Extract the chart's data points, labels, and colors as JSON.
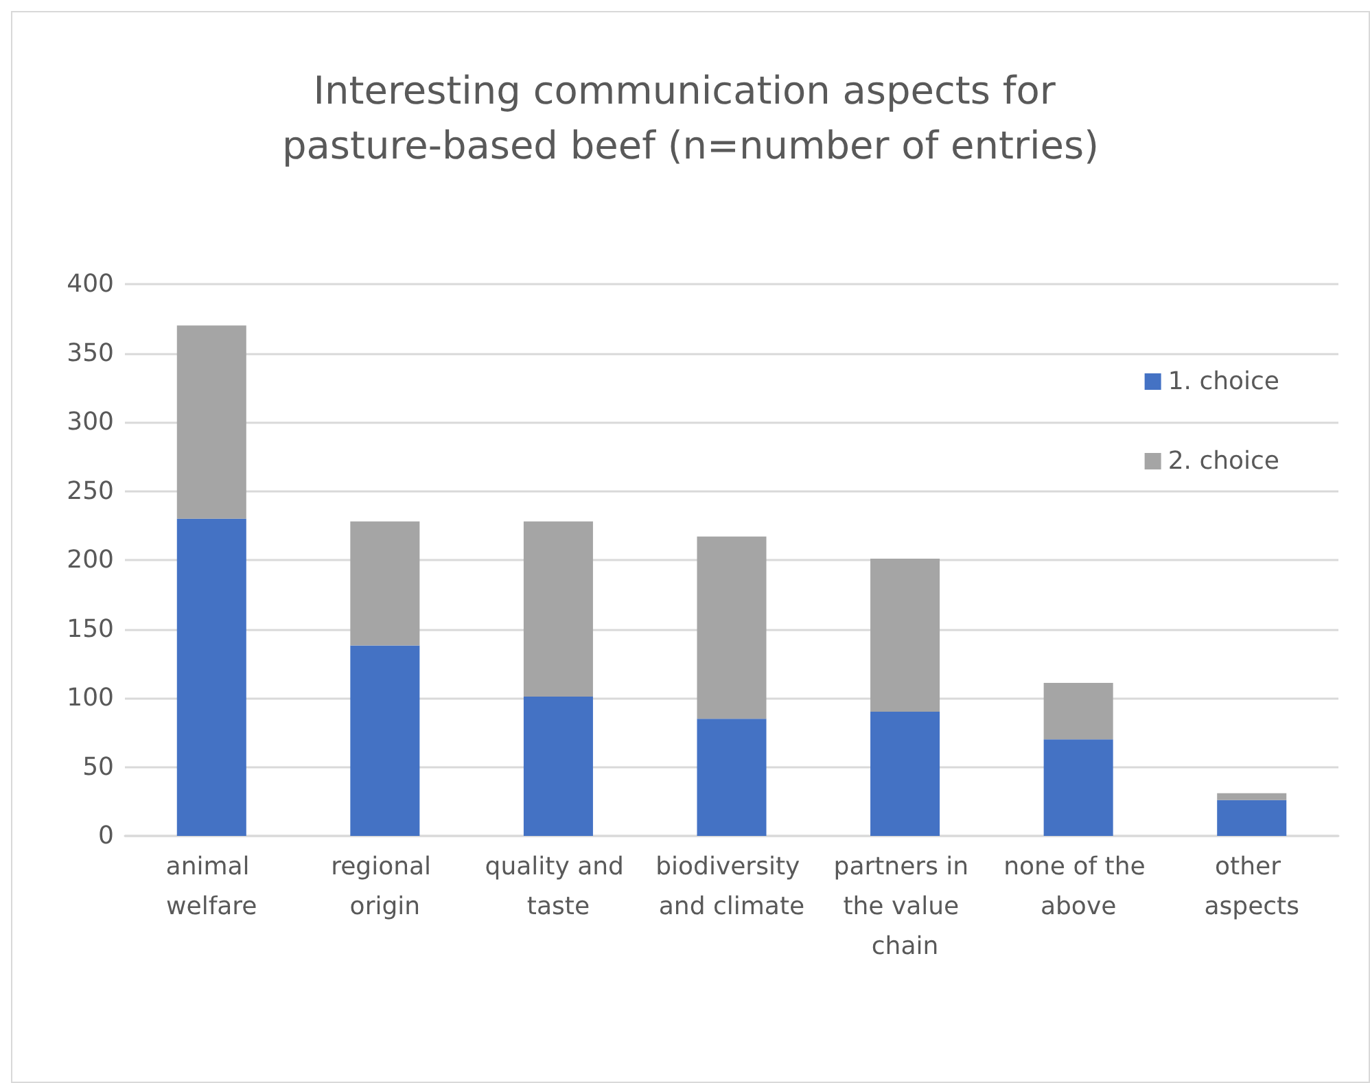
{
  "chart_data": {
    "type": "bar",
    "title": "Interesting communication aspects for pasture-based beef (n=number of entries)",
    "categories": [
      "animal welfare",
      "regional origin",
      "quality and taste",
      "biodiversity and climate",
      "partners in the value chain",
      "none of the above",
      "other aspects"
    ],
    "stacked": true,
    "series": [
      {
        "name": "1. choice",
        "color": "#4472c4",
        "values": [
          230,
          138,
          101,
          85,
          90,
          70,
          26
        ]
      },
      {
        "name": "2. choice",
        "color": "#a5a5a5",
        "values": [
          140,
          90,
          127,
          132,
          111,
          41,
          5
        ]
      }
    ],
    "ylim": [
      0,
      400
    ],
    "yticks": [
      0,
      50,
      100,
      150,
      200,
      250,
      300,
      350,
      400
    ],
    "grid": "y",
    "legend": "right"
  }
}
